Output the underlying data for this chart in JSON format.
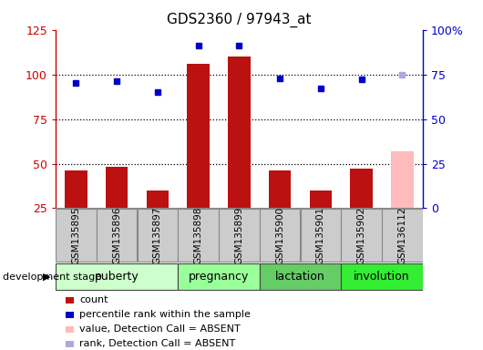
{
  "title": "GDS2360 / 97943_at",
  "samples": [
    "GSM135895",
    "GSM135896",
    "GSM135897",
    "GSM135898",
    "GSM135899",
    "GSM135900",
    "GSM135901",
    "GSM135902",
    "GSM136112"
  ],
  "count_values": [
    46,
    48,
    35,
    106,
    110,
    46,
    35,
    47,
    null
  ],
  "count_absent": [
    null,
    null,
    null,
    null,
    null,
    null,
    null,
    null,
    57
  ],
  "rank_values": [
    70,
    71,
    65,
    91,
    91,
    73,
    67,
    72,
    null
  ],
  "rank_absent": [
    null,
    null,
    null,
    null,
    null,
    null,
    null,
    null,
    75
  ],
  "ylim_left": [
    25,
    125
  ],
  "ylim_right": [
    0,
    100
  ],
  "yticks_left": [
    25,
    50,
    75,
    100,
    125
  ],
  "ytick_labels_left": [
    "25",
    "50",
    "75",
    "100",
    "125"
  ],
  "yticks_right": [
    0,
    25,
    50,
    75,
    100
  ],
  "ytick_labels_right": [
    "0",
    "25",
    "50",
    "75",
    "100%"
  ],
  "hlines": [
    50,
    75,
    100
  ],
  "stages": [
    {
      "label": "puberty",
      "indices": [
        0,
        1,
        2
      ],
      "color": "#ccffcc"
    },
    {
      "label": "pregnancy",
      "indices": [
        3,
        4
      ],
      "color": "#99ff99"
    },
    {
      "label": "lactation",
      "indices": [
        5,
        6
      ],
      "color": "#66cc66"
    },
    {
      "label": "involution",
      "indices": [
        7,
        8
      ],
      "color": "#33ee33"
    }
  ],
  "bar_color_present": "#bb1111",
  "bar_color_absent": "#ffbbbb",
  "rank_color_present": "#0000cc",
  "rank_color_absent": "#aaaadd",
  "bar_width": 0.55,
  "legend_items": [
    {
      "label": "count",
      "color": "#bb1111"
    },
    {
      "label": "percentile rank within the sample",
      "color": "#0000cc"
    },
    {
      "label": "value, Detection Call = ABSENT",
      "color": "#ffbbbb"
    },
    {
      "label": "rank, Detection Call = ABSENT",
      "color": "#aaaadd"
    }
  ],
  "left_spine_color": "#cc0000",
  "right_spine_color": "#0000cc",
  "sample_box_color": "#cccccc",
  "sample_box_edge": "#888888"
}
